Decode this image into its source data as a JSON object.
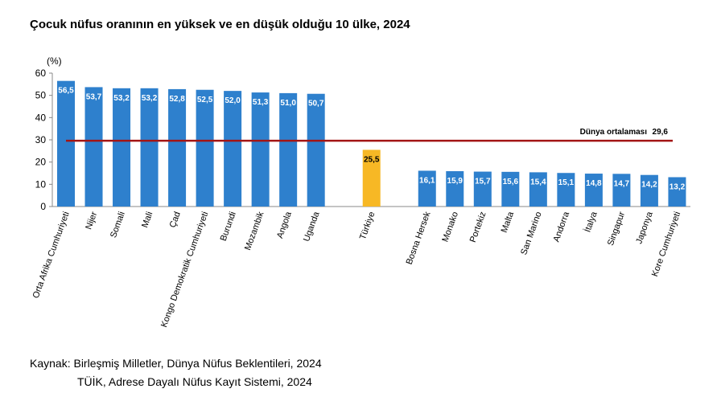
{
  "title": "Çocuk nüfus oranının en yüksek ve en düşük olduğu 10 ülke, 2024",
  "source": {
    "line1": "Kaynak: Birleşmiş Milletler, Dünya Nüfus Beklentileri, 2024",
    "line2": "TÜİK, Adrese Dayalı Nüfus Kayıt Sistemi, 2024"
  },
  "chart_data": {
    "type": "bar",
    "ylabel": "(%)",
    "ylim": [
      0,
      60
    ],
    "yticks": [
      0,
      10,
      20,
      30,
      40,
      50,
      60
    ],
    "grid": false,
    "colors": {
      "default": "#2E80CD",
      "highlight": "#F7B825",
      "reference": "#A31515"
    },
    "groups": [
      {
        "categories": [
          "Orta Afrika Cumhuriyeti",
          "Nijer",
          "Somali",
          "Mali",
          "Çad",
          "Kongo Demokratik Cumhuriyeti",
          "Burundi",
          "Mozambik",
          "Angola",
          "Uganda"
        ],
        "values": [
          56.5,
          53.7,
          53.2,
          53.2,
          52.8,
          52.5,
          52.0,
          51.3,
          51.0,
          50.7
        ],
        "labels": [
          "56,5",
          "53,7",
          "53,2",
          "53,2",
          "52,8",
          "52,5",
          "52,0",
          "51,3",
          "51,0",
          "50,7"
        ],
        "highlight": false
      },
      {
        "categories": [
          "Türkiye"
        ],
        "values": [
          25.5
        ],
        "labels": [
          "25,5"
        ],
        "highlight": true
      },
      {
        "categories": [
          "Bosna Hersek",
          "Monako",
          "Portekiz",
          "Malta",
          "San Marino",
          "Andorra",
          "İtalya",
          "Singapur",
          "Japonya",
          "Kore Cumhuriyeti"
        ],
        "values": [
          16.1,
          15.9,
          15.7,
          15.6,
          15.4,
          15.1,
          14.8,
          14.7,
          14.2,
          13.2
        ],
        "labels": [
          "16,1",
          "15,9",
          "15,7",
          "15,6",
          "15,4",
          "15,1",
          "14,8",
          "14,7",
          "14,2",
          "13,2"
        ],
        "highlight": false
      }
    ],
    "reference_line": {
      "label": "Dünya ortalaması",
      "value": 29.6,
      "value_label": "29,6"
    }
  }
}
